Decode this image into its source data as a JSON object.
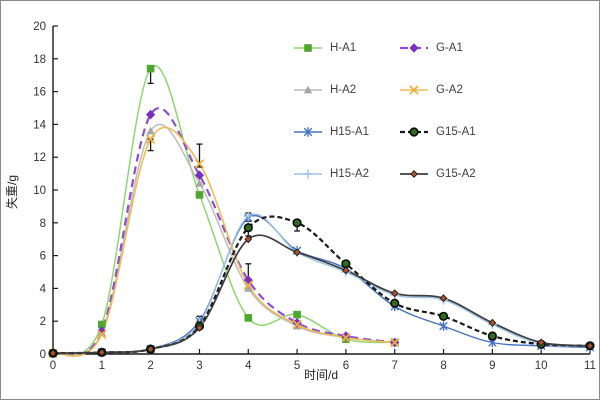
{
  "figure_title": "",
  "chart_data": {
    "type": "line",
    "title": "",
    "xlabel": "时间/d",
    "ylabel": "失重/g",
    "xlim": [
      0,
      11
    ],
    "ylim": [
      0,
      20
    ],
    "x_ticks": [
      0,
      1,
      2,
      3,
      4,
      5,
      6,
      7,
      8,
      9,
      10,
      11
    ],
    "y_ticks": [
      0,
      2,
      4,
      6,
      8,
      10,
      12,
      14,
      16,
      18,
      20
    ],
    "grid": false,
    "legend_position": "upper-center",
    "x": [
      0,
      1,
      2,
      3,
      4,
      5,
      6,
      7,
      8,
      9,
      10,
      11
    ],
    "series": [
      {
        "name": "H-A1",
        "marker": "square",
        "marker_color": "#4ea72e",
        "line_color": "#8fd671",
        "dash": "solid",
        "width": 1.5,
        "values": [
          0.05,
          1.8,
          17.4,
          9.7,
          2.2,
          2.4,
          0.9,
          0.7,
          null,
          null,
          null,
          null
        ]
      },
      {
        "name": "H-A2",
        "marker": "triangle",
        "marker_color": "#a6a6a6",
        "line_color": "#bcbcbc",
        "dash": "solid",
        "width": 1.5,
        "values": [
          0.05,
          1.3,
          13.6,
          10.4,
          4.0,
          1.7,
          1.0,
          0.7,
          null,
          null,
          null,
          null
        ]
      },
      {
        "name": "H15-A1",
        "marker": "asterisk",
        "marker_color": "#4472c4",
        "line_color": "#4472c4",
        "dash": "solid",
        "width": 1.4,
        "values": [
          0.05,
          0.1,
          0.3,
          2.0,
          8.3,
          6.3,
          5.2,
          2.9,
          1.7,
          0.7,
          0.5,
          0.4
        ]
      },
      {
        "name": "H15-A2",
        "marker": "plus",
        "marker_color": "#9dc3e6",
        "line_color": "#9dc3e6",
        "dash": "solid",
        "width": 1.4,
        "values": [
          0.05,
          0.1,
          0.3,
          1.9,
          8.4,
          6.2,
          5.0,
          3.6,
          3.3,
          1.8,
          0.6,
          0.5
        ]
      },
      {
        "name": "G-A1",
        "marker": "diamond",
        "marker_color": "#7a30c0",
        "line_color": "#8d4fd0",
        "dash": "8,5",
        "width": 2.2,
        "values": [
          0.05,
          1.4,
          14.6,
          10.9,
          4.5,
          1.9,
          1.1,
          0.7,
          null,
          null,
          null,
          null
        ]
      },
      {
        "name": "G-A2",
        "marker": "xstar",
        "marker_color": "#edb13c",
        "line_color": "#f0bc55",
        "dash": "solid",
        "width": 1.6,
        "values": [
          0.05,
          1.2,
          13.1,
          11.6,
          4.2,
          1.8,
          1.0,
          0.7,
          null,
          null,
          null,
          null
        ]
      },
      {
        "name": "G15-A1",
        "marker": "circle",
        "marker_color": "#2f6d1e",
        "marker_stroke": "#0a0a0a",
        "line_color": "#1a1a1a",
        "dash": "5,3",
        "width": 2.2,
        "values": [
          0.05,
          0.1,
          0.3,
          1.7,
          7.7,
          8.0,
          5.5,
          3.1,
          2.3,
          1.1,
          0.6,
          0.5
        ]
      },
      {
        "name": "G15-A2",
        "marker": "sdiamond",
        "marker_color": "#b2502a",
        "marker_stroke": "#1a1a1a",
        "line_color": "#3d3d3d",
        "dash": "solid",
        "width": 1.7,
        "values": [
          0.05,
          0.1,
          0.3,
          1.6,
          7.0,
          6.2,
          5.1,
          3.7,
          3.4,
          1.9,
          0.7,
          0.5
        ]
      }
    ],
    "error_bars": [
      {
        "series": "H-A1",
        "x": 2,
        "plus": 0,
        "minus": 0.9
      },
      {
        "series": "G-A2",
        "x": 2,
        "plus": 0,
        "minus": 0.7
      },
      {
        "series": "G-A2",
        "x": 3,
        "plus": 1.2,
        "minus": 0.2
      },
      {
        "series": "G-A1",
        "x": 4,
        "plus": 1.0,
        "minus": 0.2
      },
      {
        "series": "H15-A1",
        "x": 3,
        "plus": 0.3,
        "minus": 0
      },
      {
        "series": "H15-A1",
        "x": 4,
        "plus": 0.3,
        "minus": 0.2
      },
      {
        "series": "G15-A1",
        "x": 4,
        "plus": 0,
        "minus": 0.5
      },
      {
        "series": "G15-A1",
        "x": 5,
        "plus": 0,
        "minus": 0.5
      }
    ]
  }
}
